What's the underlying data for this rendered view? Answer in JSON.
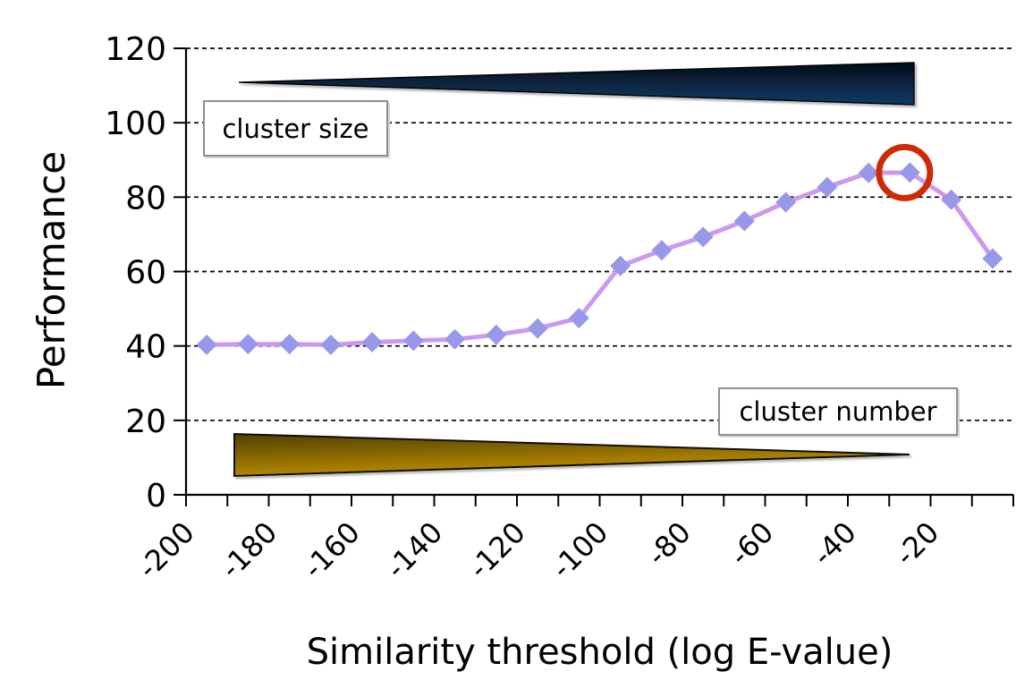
{
  "chart_data": {
    "type": "line",
    "title": "",
    "xlabel": "Similarity threshold (log E-value)",
    "ylabel": "Performance",
    "x": [
      -200,
      -190,
      -180,
      -170,
      -160,
      -150,
      -140,
      -130,
      -120,
      -110,
      -100,
      -90,
      -80,
      -70,
      -60,
      -50,
      -40,
      -30,
      -20,
      -10
    ],
    "series": [
      {
        "name": "Performance",
        "values": [
          40.3,
          40.5,
          40.5,
          40.3,
          41.0,
          41.4,
          41.8,
          43.0,
          44.7,
          47.5,
          61.5,
          65.7,
          69.3,
          73.6,
          78.6,
          82.7,
          86.5,
          86.6,
          79.3,
          63.5
        ],
        "line_color": "#cc99f0",
        "marker": "diamond",
        "marker_color": "#9898ea"
      }
    ],
    "x_tick_labels": [
      "-200",
      "-180",
      "-160",
      "-140",
      "-120",
      "-100",
      "-80",
      "-60",
      "-40",
      "-20"
    ],
    "y_ticks": [
      0,
      20,
      40,
      60,
      80,
      100,
      120
    ],
    "ylim": [
      0,
      120
    ],
    "xlim_note": "category axis, 20 categories from -200 to -10, minor tick every category boundary",
    "grid": "horizontal dashed black lines at every 20 units",
    "legend": "none",
    "axis_color": "#000000",
    "annotations": {
      "cluster_size": {
        "label": "cluster size",
        "shape": "wedge narrow at left, wide at right",
        "color_top": "#030d18",
        "color_bottom": "#113c66"
      },
      "cluster_number": {
        "label": "cluster number",
        "shape": "wedge wide at left, narrow at right",
        "color_dark": "#514000",
        "color_bright": "#c69400"
      },
      "highlight": {
        "type": "circle",
        "x": -30,
        "y": 86.6,
        "color": "#cf2a08"
      }
    }
  }
}
